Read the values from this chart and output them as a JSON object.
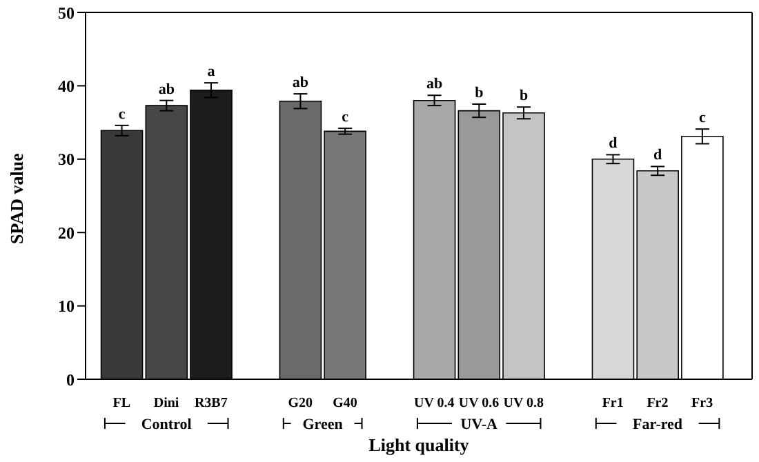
{
  "chart_data": {
    "type": "bar",
    "xlabel": "Light quality",
    "ylabel": "SPAD value",
    "categories": [
      "FL",
      "Dini",
      "R3B7",
      null,
      "G20",
      "G40",
      null,
      "UV 0.4",
      "UV 0.6",
      "UV 0.8",
      null,
      "Fr1",
      "Fr2",
      "Fr3"
    ],
    "values": [
      33.9,
      37.3,
      39.4,
      null,
      37.9,
      33.8,
      null,
      38.0,
      36.6,
      36.3,
      null,
      30.0,
      28.4,
      33.1
    ],
    "errors": [
      0.7,
      0.7,
      1.0,
      null,
      1.0,
      0.4,
      null,
      0.7,
      0.9,
      0.8,
      null,
      0.6,
      0.6,
      1.0
    ],
    "value_labels": [
      "c",
      "ab",
      "a",
      null,
      "ab",
      "c",
      null,
      "ab",
      "b",
      "b",
      null,
      "d",
      "d",
      "c"
    ],
    "colors": [
      "#3a3a3a",
      "#474747",
      "#1c1c1c",
      null,
      "#6a6a6a",
      "#777777",
      null,
      "#a8a8a8",
      "#999999",
      "#c4c4c4",
      null,
      "#d8d8d8",
      "#c8c8c8",
      "#ffffff"
    ],
    "annotations": [
      "Control",
      "Green",
      "UV-A",
      "Far-red"
    ],
    "ylim": [
      0,
      50
    ],
    "yticks": [
      0,
      10,
      20,
      30,
      40,
      50
    ]
  }
}
